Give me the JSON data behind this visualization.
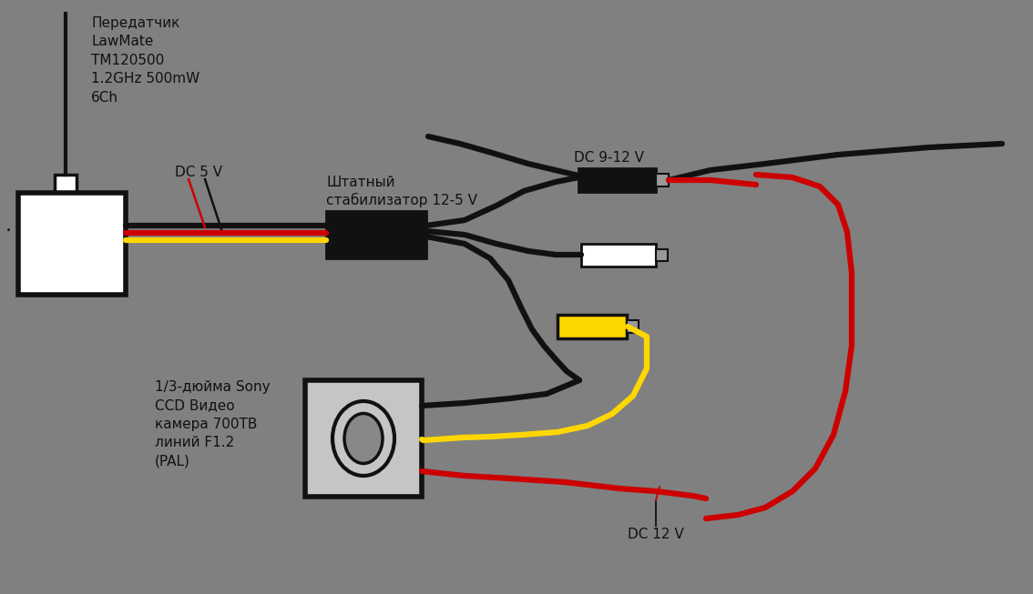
{
  "bg_color": "#808080",
  "text_color": "#111111",
  "transmitter_label": "Передатчик\nLawMate\nTM120500\n1.2GHz 500mW\n6Ch",
  "camera_label": "1/3-дюйма Sony\nCCD Видео\nкамера 700ТВ\nлиний F1.2\n(PAL)",
  "stabilizer_label": "Штатный\nстабилизатор 12-5 V",
  "dc5v_label": "DC 5 V",
  "dc912v_label": "DC 9-12 V",
  "dc12v_label": "DC 12 V",
  "wire_black": "#111111",
  "wire_red": "#cc0000",
  "wire_yellow": "#ffd700",
  "fontsize": 11
}
